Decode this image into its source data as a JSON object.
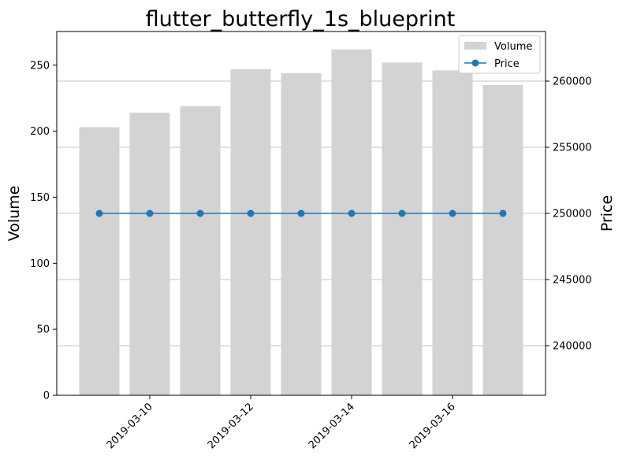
{
  "chart_data": {
    "type": "bar",
    "title": "flutter_butterfly_1s_blueprint",
    "xlabel": "",
    "ylabel": "Volume",
    "y2label": "Price",
    "x": [
      "2019-03-09",
      "2019-03-10",
      "2019-03-11",
      "2019-03-12",
      "2019-03-13",
      "2019-03-14",
      "2019-03-15",
      "2019-03-16",
      "2019-03-17"
    ],
    "x_ticks": [
      "2019-03-10",
      "2019-03-12",
      "2019-03-14",
      "2019-03-16"
    ],
    "series": [
      {
        "name": "Volume",
        "type": "bar",
        "axis": "left",
        "color": "#d3d3d3",
        "values": [
          203,
          214,
          219,
          247,
          244,
          262,
          252,
          246,
          235
        ]
      },
      {
        "name": "Price",
        "type": "line",
        "axis": "right",
        "color": "#1f77b4",
        "values": [
          250000,
          250000,
          250000,
          250000,
          250000,
          250000,
          250000,
          250000,
          250000
        ]
      }
    ],
    "ylim": [
      0,
      275.5
    ],
    "y_ticks": [
      0,
      50,
      100,
      150,
      200,
      250
    ],
    "y2lim": [
      236250,
      263750
    ],
    "y2_ticks": [
      240000,
      245000,
      250000,
      255000,
      260000
    ],
    "grid": "right-axis horizontal",
    "legend": "top-right"
  }
}
